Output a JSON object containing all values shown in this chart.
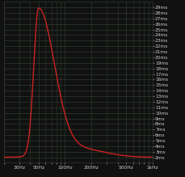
{
  "bg_color": "#111111",
  "grid_color": "#2d3a2d",
  "line_color": "#cc2222",
  "line_width": 1.0,
  "xmin": 20,
  "xmax": 1000,
  "ymin": 1,
  "ymax": 30,
  "yticks": [
    2,
    3,
    4,
    5,
    6,
    7,
    8,
    9,
    10,
    11,
    12,
    13,
    14,
    15,
    16,
    17,
    18,
    19,
    20,
    21,
    22,
    23,
    24,
    25,
    26,
    27,
    28,
    29
  ],
  "xtick_labels": [
    "30Hz",
    "50Hz",
    "100Hz",
    "200Hz",
    "500Hz",
    "1kHz"
  ],
  "xtick_values": [
    30,
    50,
    100,
    200,
    500,
    1000
  ],
  "peak_freq": 50,
  "peak_val": 28.5,
  "baseline": 2.0,
  "sigma_low": 0.055,
  "sigma_high": 0.18,
  "hump_freq": 150,
  "hump_amp": 1.5,
  "hump_sigma": 0.28,
  "tick_label_color": "#cccccc",
  "tick_fontsize": 4.2
}
